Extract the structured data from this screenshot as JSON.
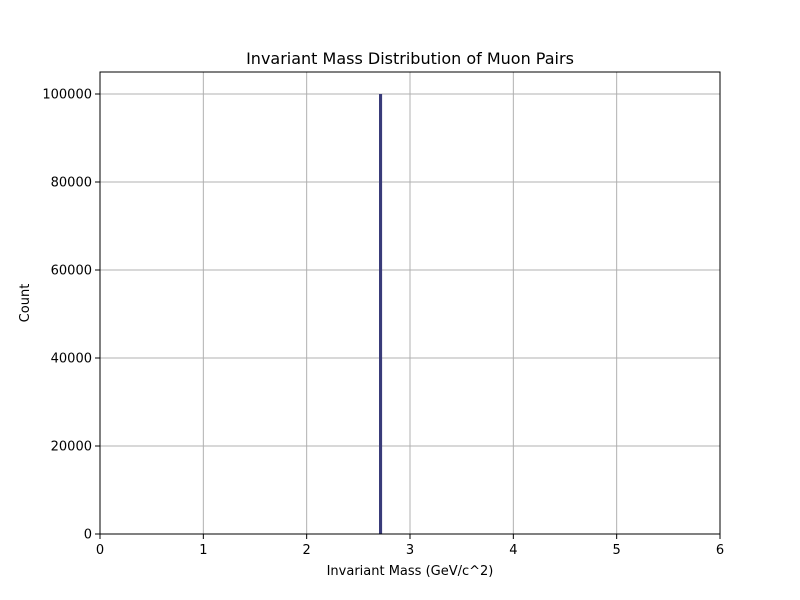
{
  "chart_data": {
    "type": "bar",
    "title": "Invariant Mass Distribution of Muon Pairs",
    "xlabel": "Invariant Mass (GeV/c^2)",
    "ylabel": "Count",
    "xlim": [
      0,
      6
    ],
    "ylim": [
      0,
      105000
    ],
    "x_ticks": [
      0,
      1,
      2,
      3,
      4,
      5,
      6
    ],
    "y_ticks": [
      0,
      20000,
      40000,
      60000,
      80000,
      100000
    ],
    "grid": true,
    "bin_width": 0.03,
    "bins": [
      {
        "x_start": 2.7,
        "x_end": 2.73,
        "count": 100000
      }
    ],
    "colors": {
      "bar": "#393b79",
      "grid": "#b0b0b0",
      "axes": "#000000"
    }
  }
}
